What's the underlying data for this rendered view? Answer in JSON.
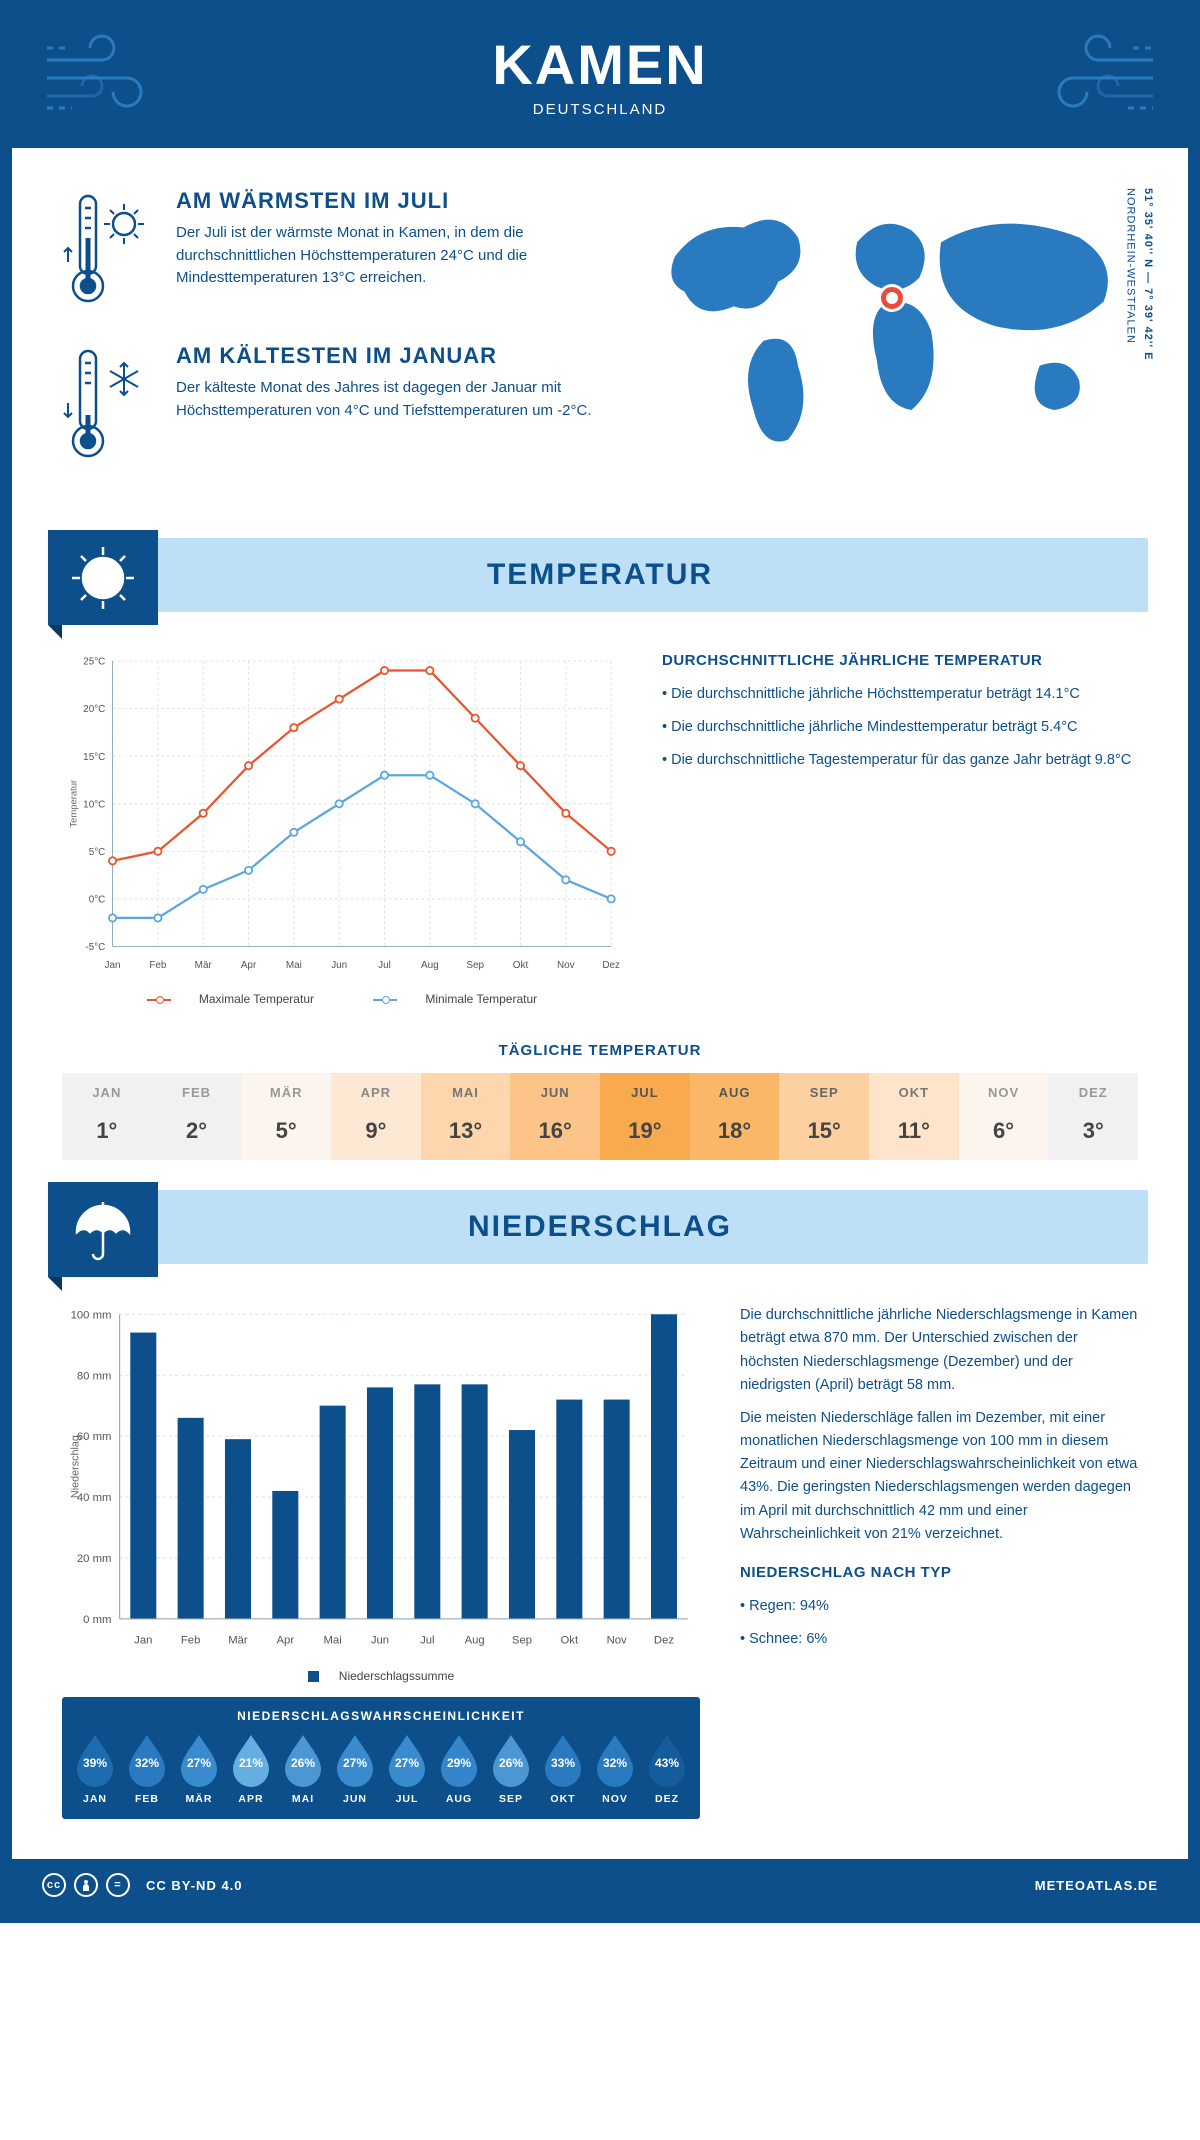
{
  "header": {
    "city": "KAMEN",
    "country": "DEUTSCHLAND"
  },
  "coords": {
    "line1": "51° 35' 40'' N — 7° 39' 42'' E",
    "line2": "NORDRHEIN-WESTFALEN"
  },
  "map_marker": {
    "left_pct": 48,
    "top_pct": 32
  },
  "facts": {
    "warm": {
      "title": "AM WÄRMSTEN IM JULI",
      "text": "Der Juli ist der wärmste Monat in Kamen, in dem die durchschnittlichen Höchsttemperaturen 24°C und die Mindesttemperaturen 13°C erreichen."
    },
    "cold": {
      "title": "AM KÄLTESTEN IM JANUAR",
      "text": "Der kälteste Monat des Jahres ist dagegen der Januar mit Höchsttemperaturen von 4°C und Tiefsttemperaturen um -2°C."
    }
  },
  "sections": {
    "temp": "TEMPERATUR",
    "precip": "NIEDERSCHLAG"
  },
  "temp_chart": {
    "type": "line",
    "months": [
      "Jan",
      "Feb",
      "Mär",
      "Apr",
      "Mai",
      "Jun",
      "Jul",
      "Aug",
      "Sep",
      "Okt",
      "Nov",
      "Dez"
    ],
    "max_series": [
      4,
      5,
      9,
      14,
      18,
      21,
      24,
      24,
      19,
      14,
      9,
      5
    ],
    "min_series": [
      -2,
      -2,
      1,
      3,
      7,
      10,
      13,
      13,
      10,
      6,
      2,
      0
    ],
    "ylim": [
      -5,
      25
    ],
    "ytick_step": 5,
    "yunit": "°C",
    "ylabel": "Temperatur",
    "colors": {
      "max": "#e8552f",
      "min": "#5da6dc",
      "grid": "#d7e2ea",
      "axis": "#8aa2b3"
    },
    "legend": {
      "max": "Maximale Temperatur",
      "min": "Minimale Temperatur"
    }
  },
  "temp_text": {
    "title": "DURCHSCHNITTLICHE JÄHRLICHE TEMPERATUR",
    "items": [
      "Die durchschnittliche jährliche Höchsttemperatur beträgt 14.1°C",
      "Die durchschnittliche jährliche Mindesttemperatur beträgt 5.4°C",
      "Die durchschnittliche Tagestemperatur für das ganze Jahr beträgt 9.8°C"
    ]
  },
  "daily_temp": {
    "title": "TÄGLICHE TEMPERATUR",
    "months": [
      "JAN",
      "FEB",
      "MÄR",
      "APR",
      "MAI",
      "JUN",
      "JUL",
      "AUG",
      "SEP",
      "OKT",
      "NOV",
      "DEZ"
    ],
    "values": [
      "1°",
      "2°",
      "5°",
      "9°",
      "13°",
      "16°",
      "19°",
      "18°",
      "15°",
      "11°",
      "6°",
      "3°"
    ],
    "cell_bg": [
      "#f3f0f3",
      "#f3f0f3",
      "#fbf5ee",
      "#fde8d3",
      "#fdd6ad",
      "#fcc488",
      "#f9a94e",
      "#fab767",
      "#fdd0a1",
      "#fde4cb",
      "#fbf5ee",
      "#f3f0f3"
    ],
    "label_color": [
      "#999",
      "#999",
      "#999",
      "#888",
      "#777",
      "#666",
      "#555",
      "#555",
      "#666",
      "#777",
      "#999",
      "#999"
    ]
  },
  "precip_chart": {
    "type": "bar",
    "months": [
      "Jan",
      "Feb",
      "Mär",
      "Apr",
      "Mai",
      "Jun",
      "Jul",
      "Aug",
      "Sep",
      "Okt",
      "Nov",
      "Dez"
    ],
    "values": [
      94,
      66,
      59,
      42,
      70,
      76,
      77,
      77,
      62,
      72,
      72,
      100
    ],
    "ylim": [
      0,
      100
    ],
    "ytick_step": 20,
    "yunit": " mm",
    "ylabel": "Niederschlag",
    "bar_color": "#0d4f8b",
    "grid": "#d7e2ea",
    "legend": "Niederschlagssumme"
  },
  "precip_text": {
    "p1": "Die durchschnittliche jährliche Niederschlagsmenge in Kamen beträgt etwa 870 mm. Der Unterschied zwischen der höchsten Niederschlagsmenge (Dezember) und der niedrigsten (April) beträgt 58 mm.",
    "p2": "Die meisten Niederschläge fallen im Dezember, mit einer monatlichen Niederschlagsmenge von 100 mm in diesem Zeitraum und einer Niederschlagswahrscheinlichkeit von etwa 43%. Die geringsten Niederschlagsmengen werden dagegen im April mit durchschnittlich 42 mm und einer Wahrscheinlichkeit von 21% verzeichnet.",
    "type_title": "NIEDERSCHLAG NACH TYP",
    "type_items": [
      "Regen: 94%",
      "Schnee: 6%"
    ]
  },
  "precip_prob": {
    "title": "NIEDERSCHLAGSWAHRSCHEINLICHKEIT",
    "months": [
      "JAN",
      "FEB",
      "MÄR",
      "APR",
      "MAI",
      "JUN",
      "JUL",
      "AUG",
      "SEP",
      "OKT",
      "NOV",
      "DEZ"
    ],
    "values": [
      "39%",
      "32%",
      "27%",
      "21%",
      "26%",
      "27%",
      "27%",
      "29%",
      "26%",
      "33%",
      "32%",
      "43%"
    ],
    "colors": [
      "#1e6cb0",
      "#2a7ac0",
      "#3a8bce",
      "#64aee2",
      "#4a97d4",
      "#3a8bce",
      "#3a8bce",
      "#3485ca",
      "#4a97d4",
      "#2a7ac0",
      "#2a7ac0",
      "#155c9c"
    ]
  },
  "footer": {
    "license": "CC BY-ND 4.0",
    "site": "METEOATLAS.DE"
  }
}
